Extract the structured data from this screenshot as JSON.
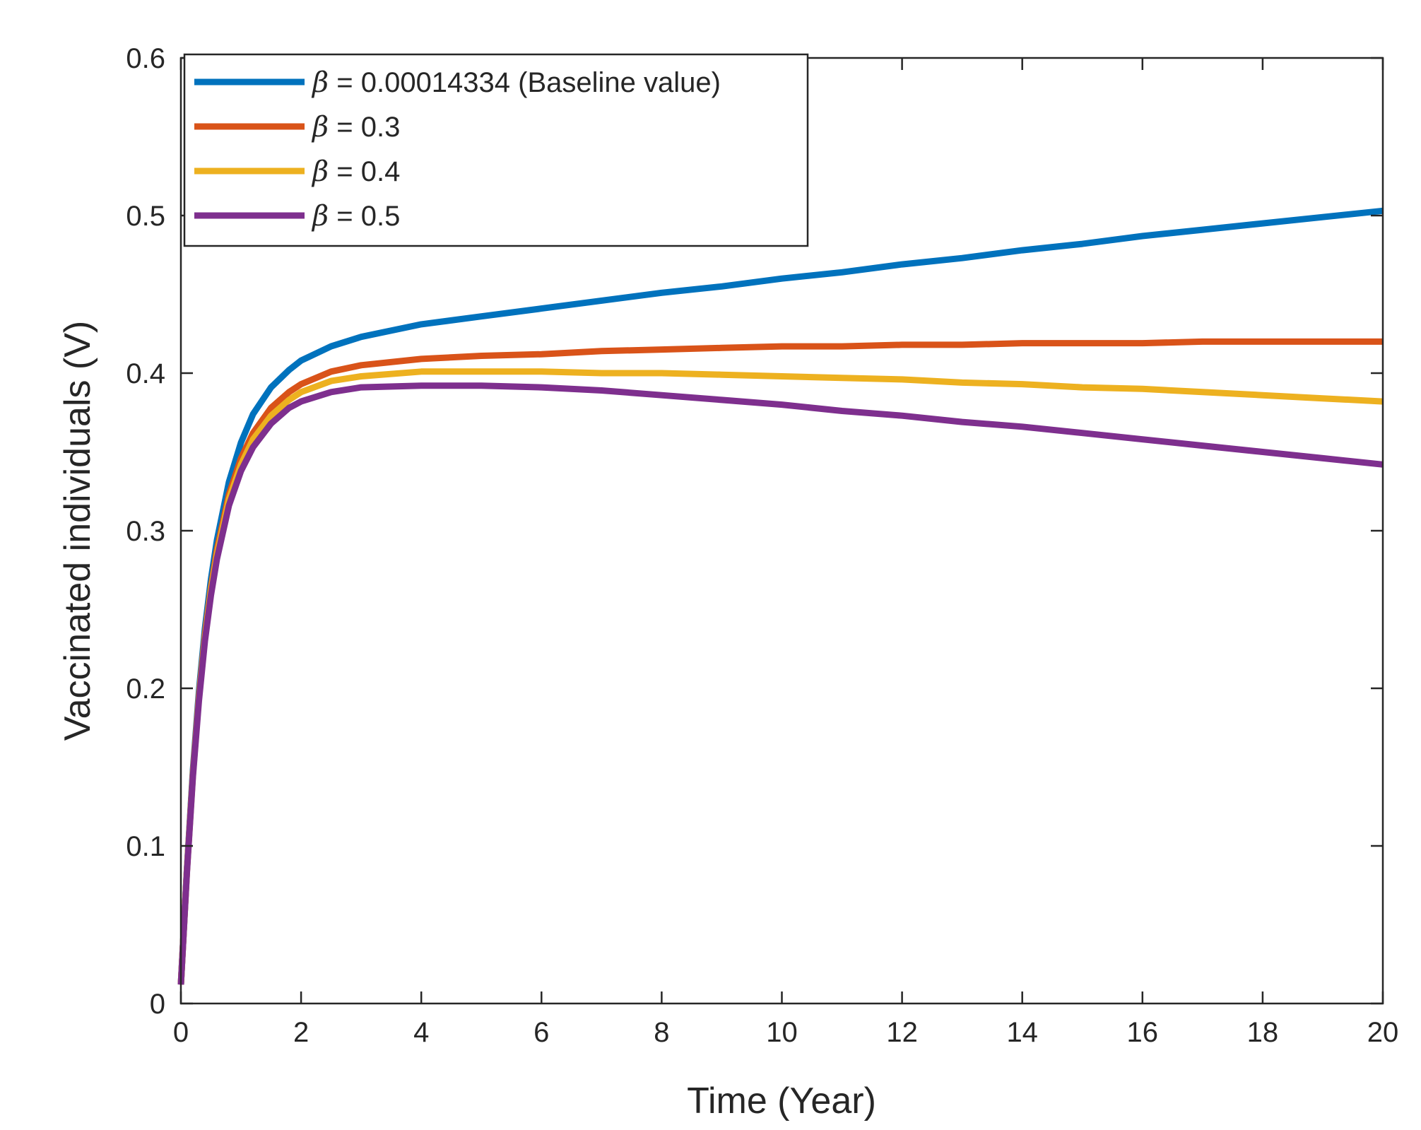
{
  "chart_data": {
    "type": "line",
    "title": "",
    "xlabel": "Time (Year)",
    "ylabel": "Vaccinated individuals (V)",
    "xlim": [
      0,
      20
    ],
    "ylim": [
      0,
      0.6
    ],
    "xticks": [
      0,
      2,
      4,
      6,
      8,
      10,
      12,
      14,
      16,
      18,
      20
    ],
    "yticks": [
      0,
      0.1,
      0.2,
      0.3,
      0.4,
      0.5,
      0.6
    ],
    "xtick_labels": [
      "0",
      "2",
      "4",
      "6",
      "8",
      "10",
      "12",
      "14",
      "16",
      "18",
      "20"
    ],
    "ytick_labels": [
      "0",
      "0.1",
      "0.2",
      "0.3",
      "0.4",
      "0.5",
      "0.6"
    ],
    "grid": false,
    "box": true,
    "legend_position": "top-left",
    "x": [
      0,
      0.1,
      0.2,
      0.3,
      0.4,
      0.5,
      0.6,
      0.8,
      1.0,
      1.2,
      1.5,
      1.8,
      2.0,
      2.5,
      3.0,
      4.0,
      5.0,
      6.0,
      7.0,
      8.0,
      9.0,
      10.0,
      11.0,
      12.0,
      13.0,
      14.0,
      15.0,
      16.0,
      17.0,
      18.0,
      19.0,
      20.0
    ],
    "series": [
      {
        "name": "β = 0.00014334 (Baseline value)",
        "symbol": "β",
        "label_rest": " = 0.00014334 (Baseline value)",
        "color": "#0072BD",
        "values": [
          0.012,
          0.085,
          0.148,
          0.198,
          0.238,
          0.269,
          0.294,
          0.331,
          0.356,
          0.374,
          0.391,
          0.402,
          0.408,
          0.417,
          0.423,
          0.431,
          0.436,
          0.441,
          0.446,
          0.451,
          0.455,
          0.46,
          0.464,
          0.469,
          0.473,
          0.478,
          0.482,
          0.487,
          0.491,
          0.495,
          0.499,
          0.503
        ]
      },
      {
        "name": "β = 0.3",
        "symbol": "β",
        "label_rest": " = 0.3",
        "color": "#D95319",
        "values": [
          0.012,
          0.084,
          0.146,
          0.195,
          0.234,
          0.264,
          0.288,
          0.323,
          0.346,
          0.362,
          0.378,
          0.388,
          0.393,
          0.401,
          0.405,
          0.409,
          0.411,
          0.412,
          0.414,
          0.415,
          0.416,
          0.417,
          0.417,
          0.418,
          0.418,
          0.419,
          0.419,
          0.419,
          0.42,
          0.42,
          0.42,
          0.42
        ]
      },
      {
        "name": "β = 0.4",
        "symbol": "β",
        "label_rest": " = 0.4",
        "color": "#EDB120",
        "values": [
          0.012,
          0.084,
          0.145,
          0.194,
          0.232,
          0.262,
          0.285,
          0.32,
          0.342,
          0.358,
          0.373,
          0.383,
          0.388,
          0.395,
          0.398,
          0.401,
          0.401,
          0.401,
          0.4,
          0.4,
          0.399,
          0.398,
          0.397,
          0.396,
          0.394,
          0.393,
          0.391,
          0.39,
          0.388,
          0.386,
          0.384,
          0.382
        ]
      },
      {
        "name": "β = 0.5",
        "symbol": "β",
        "label_rest": " = 0.5",
        "color": "#7E2F8E",
        "values": [
          0.012,
          0.083,
          0.144,
          0.192,
          0.23,
          0.259,
          0.282,
          0.316,
          0.338,
          0.353,
          0.368,
          0.378,
          0.382,
          0.388,
          0.391,
          0.392,
          0.392,
          0.391,
          0.389,
          0.386,
          0.383,
          0.38,
          0.376,
          0.373,
          0.369,
          0.366,
          0.362,
          0.358,
          0.354,
          0.35,
          0.346,
          0.342
        ]
      }
    ]
  }
}
